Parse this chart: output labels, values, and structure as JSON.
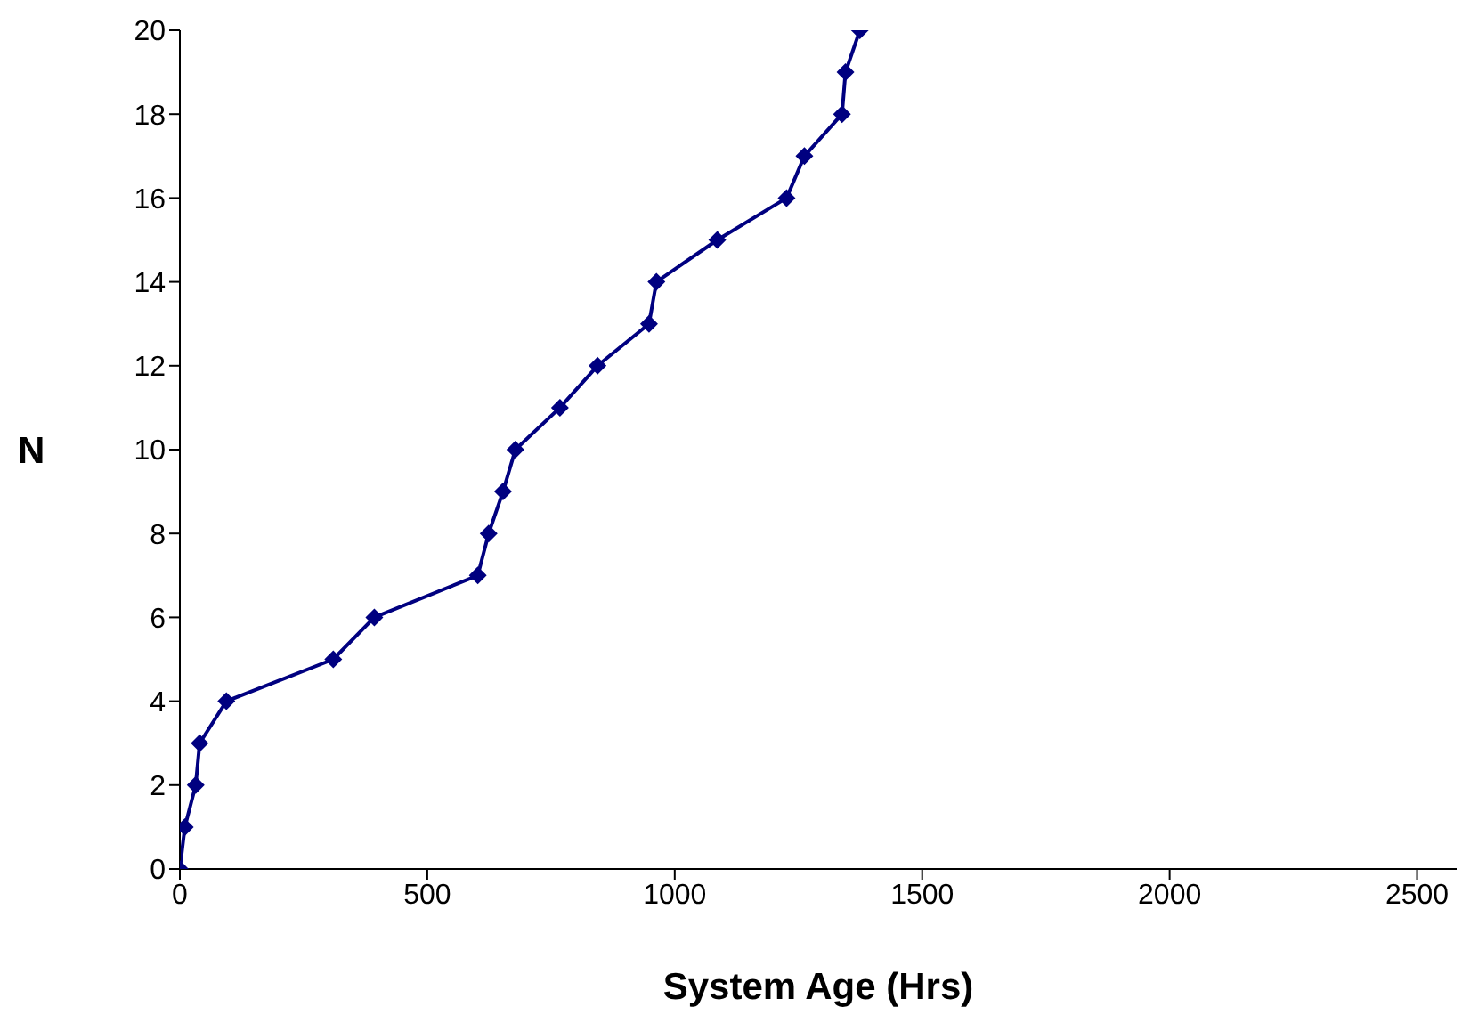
{
  "chart_data": {
    "type": "line",
    "xlabel": "System Age (Hrs)",
    "ylabel": "N",
    "x": [
      0,
      10,
      32,
      40,
      94,
      310,
      393,
      602,
      624,
      653,
      678,
      768,
      844,
      948,
      963,
      1086,
      1226,
      1262,
      1338,
      1345,
      1374
    ],
    "series": [
      {
        "color": "#000080",
        "values": [
          0,
          1,
          2,
          3,
          4,
          5,
          6,
          7,
          8,
          9,
          10,
          11,
          12,
          13,
          14,
          15,
          16,
          17,
          18,
          19,
          20
        ]
      }
    ],
    "xlim": [
      0,
      2580
    ],
    "xticks": [
      0,
      500,
      1000,
      1500,
      2000,
      2500
    ],
    "ylim": [
      0,
      20
    ],
    "yticks": [
      0,
      2,
      4,
      6,
      8,
      10,
      12,
      14,
      16,
      18,
      20
    ],
    "grid": false,
    "marker": "diamond",
    "line_style": "solid"
  }
}
